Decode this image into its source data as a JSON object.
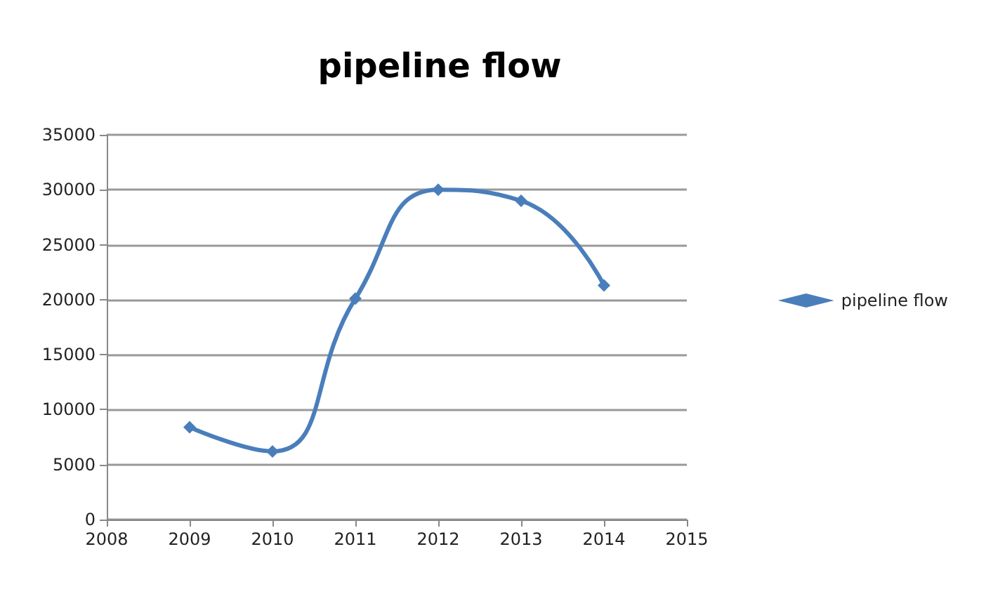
{
  "chart_data": {
    "type": "line",
    "title": "pipeline flow",
    "x": [
      2009,
      2010,
      2011,
      2012,
      2013,
      2014
    ],
    "series": [
      {
        "name": "pipeline flow",
        "color": "#4a7ebb",
        "values": [
          8400,
          6200,
          20100,
          30000,
          29000,
          21300
        ]
      }
    ],
    "xlim": [
      2008,
      2015
    ],
    "xticks": [
      2008,
      2009,
      2010,
      2011,
      2012,
      2013,
      2014,
      2015
    ],
    "ylim": [
      0,
      35000
    ],
    "yticks": [
      0,
      5000,
      10000,
      15000,
      20000,
      25000,
      30000,
      35000
    ],
    "grid": "y",
    "legend": "right",
    "marker": "diamond",
    "line_style": "solid"
  }
}
